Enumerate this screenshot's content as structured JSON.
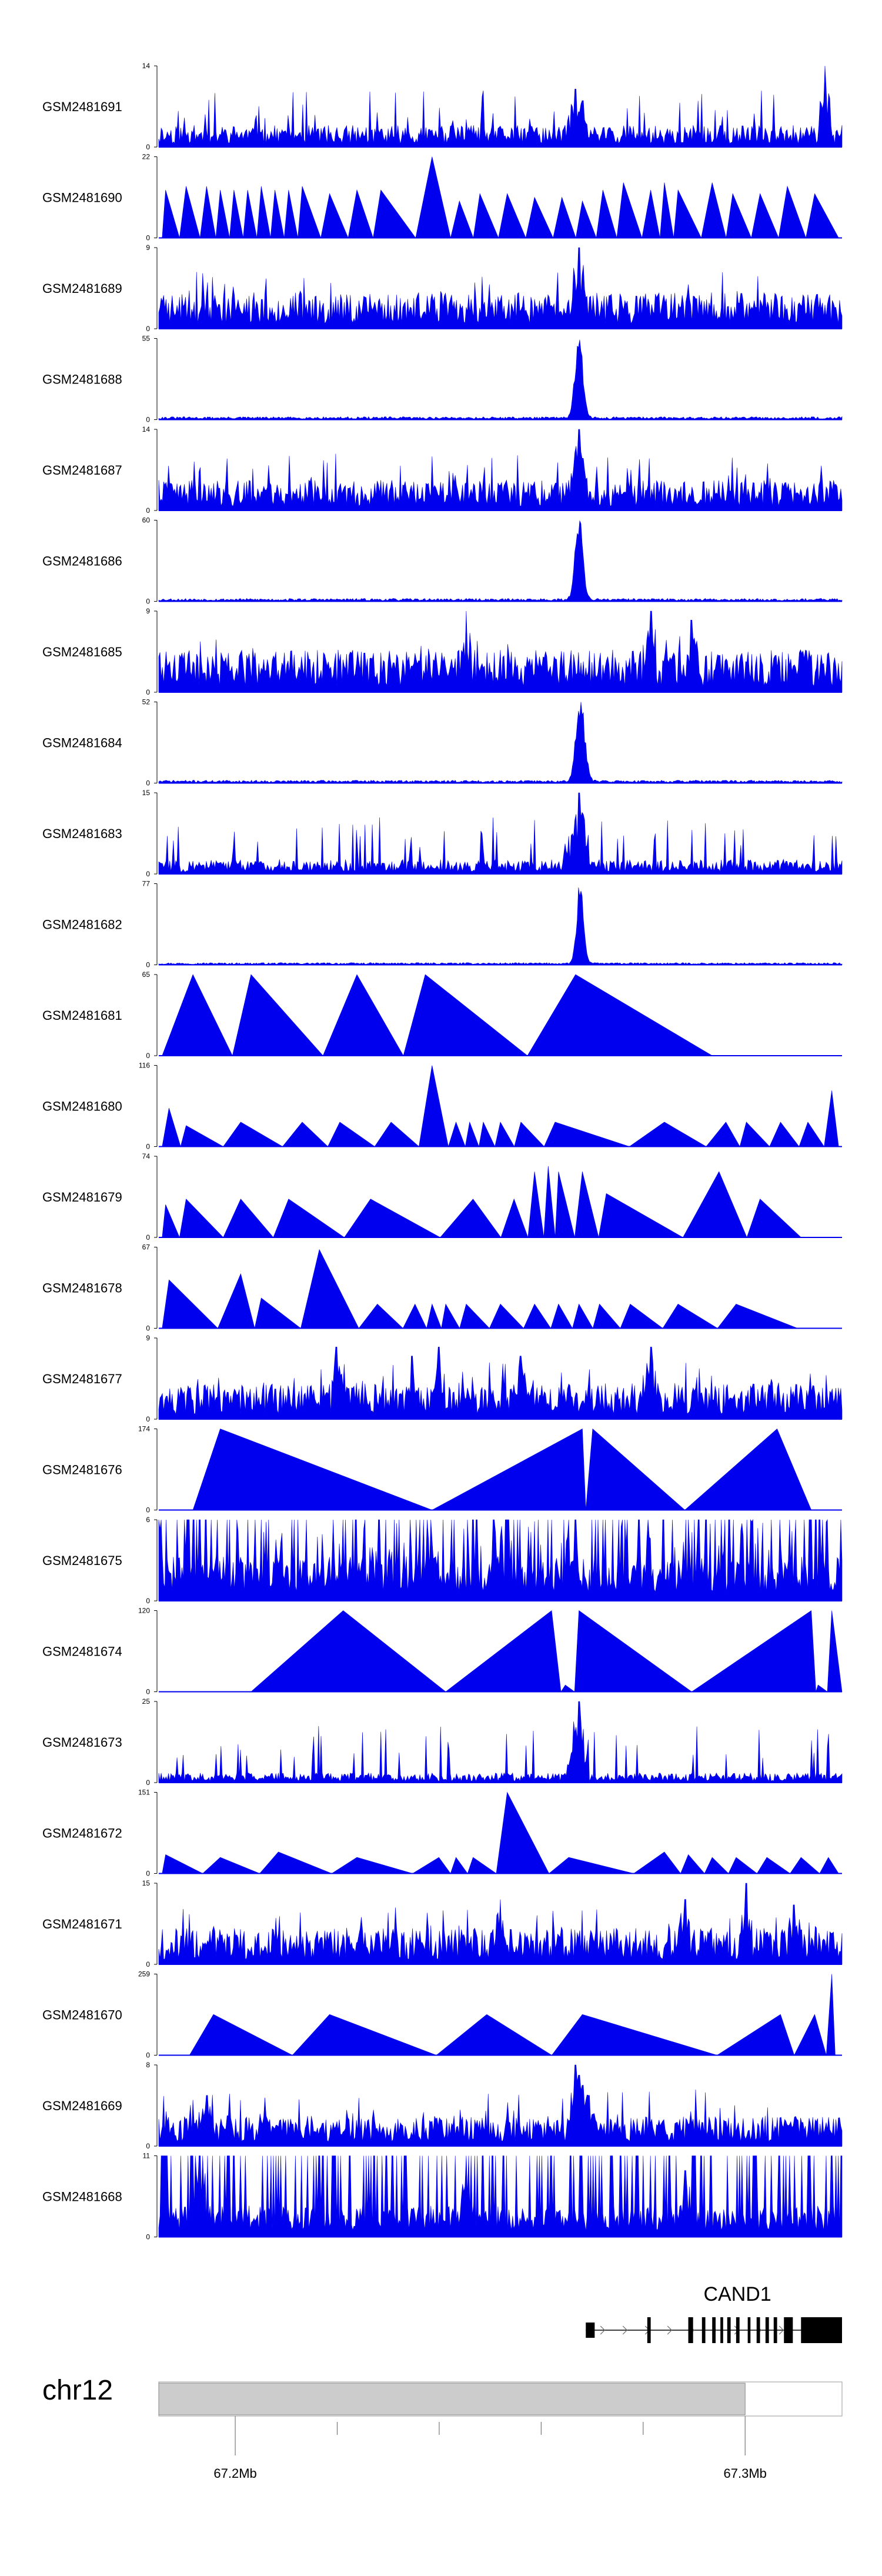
{
  "chart_data": {
    "type": "area",
    "title": "",
    "chromosome": "chr12",
    "x_range_bp": [
      67185000,
      67319000
    ],
    "ticks": [
      {
        "pos": 67200000,
        "label": "67.2Mb"
      },
      {
        "pos": 67300000,
        "label": "67.3Mb"
      }
    ],
    "minor_tick_positions": [
      67220000,
      67240000,
      67260000,
      67280000
    ],
    "region_start_bp": 67185000,
    "region_end_bp": 67300000,
    "colors": {
      "signal": "#0000ee",
      "gene": "#000000",
      "ideogram": "#cccccc"
    },
    "tracks": [
      {
        "name": "GSM2481691",
        "ymax": 14,
        "min_label": "0",
        "max_label": "14",
        "style": "noisy",
        "seed": 11,
        "base": 0.18,
        "spikes": [
          [
            0.61,
            10
          ],
          [
            0.62,
            8
          ],
          [
            0.605,
            7
          ],
          [
            0.975,
            14
          ]
        ]
      },
      {
        "name": "GSM2481690",
        "ymax": 22,
        "min_label": "0",
        "max_label": "22",
        "style": "sawtooth",
        "peaks": [
          [
            0.01,
            13
          ],
          [
            0.04,
            14
          ],
          [
            0.07,
            14
          ],
          [
            0.09,
            13
          ],
          [
            0.11,
            13
          ],
          [
            0.13,
            13
          ],
          [
            0.15,
            14
          ],
          [
            0.17,
            13
          ],
          [
            0.19,
            13
          ],
          [
            0.21,
            14
          ],
          [
            0.25,
            12
          ],
          [
            0.29,
            13
          ],
          [
            0.325,
            13
          ],
          [
            0.4,
            22
          ],
          [
            0.44,
            10
          ],
          [
            0.47,
            12
          ],
          [
            0.51,
            12
          ],
          [
            0.55,
            11
          ],
          [
            0.59,
            11
          ],
          [
            0.62,
            10
          ],
          [
            0.65,
            13
          ],
          [
            0.68,
            15
          ],
          [
            0.72,
            13
          ],
          [
            0.74,
            15
          ],
          [
            0.76,
            13
          ],
          [
            0.81,
            15
          ],
          [
            0.84,
            12
          ],
          [
            0.88,
            12
          ],
          [
            0.92,
            14
          ],
          [
            0.96,
            12
          ]
        ]
      },
      {
        "name": "GSM2481689",
        "ymax": 9,
        "min_label": "0",
        "max_label": "9",
        "style": "noisy",
        "seed": 23,
        "base": 0.3,
        "spikes": [
          [
            0.615,
            9
          ],
          [
            0.62,
            6
          ]
        ]
      },
      {
        "name": "GSM2481688",
        "ymax": 55,
        "min_label": "0",
        "max_label": "55",
        "style": "peak",
        "seed": 31,
        "base": 0.02,
        "center": 0.615,
        "width": 0.008,
        "height": 55
      },
      {
        "name": "GSM2481687",
        "ymax": 14,
        "min_label": "0",
        "max_label": "14",
        "style": "noisy",
        "seed": 41,
        "base": 0.25,
        "spikes": [
          [
            0.615,
            14
          ],
          [
            0.61,
            10
          ],
          [
            0.62,
            9
          ]
        ]
      },
      {
        "name": "GSM2481686",
        "ymax": 60,
        "min_label": "0",
        "max_label": "60",
        "style": "peak",
        "seed": 53,
        "base": 0.02,
        "center": 0.615,
        "width": 0.008,
        "height": 60
      },
      {
        "name": "GSM2481685",
        "ymax": 9,
        "min_label": "0",
        "max_label": "9",
        "style": "noisy",
        "seed": 61,
        "base": 0.35,
        "spikes": [
          [
            0.45,
            9
          ],
          [
            0.72,
            9
          ],
          [
            0.78,
            8
          ]
        ]
      },
      {
        "name": "GSM2481684",
        "ymax": 52,
        "min_label": "0",
        "max_label": "52",
        "style": "peak",
        "seed": 71,
        "base": 0.02,
        "center": 0.617,
        "width": 0.009,
        "height": 52
      },
      {
        "name": "GSM2481683",
        "ymax": 15,
        "min_label": "0",
        "max_label": "15",
        "style": "noisy",
        "seed": 83,
        "base": 0.12,
        "spikes": [
          [
            0.615,
            15
          ],
          [
            0.61,
            10
          ],
          [
            0.62,
            11
          ],
          [
            0.6,
            7
          ]
        ]
      },
      {
        "name": "GSM2481682",
        "ymax": 77,
        "min_label": "0",
        "max_label": "77",
        "style": "peak",
        "seed": 97,
        "base": 0.015,
        "center": 0.617,
        "width": 0.007,
        "height": 77
      },
      {
        "name": "GSM2481681",
        "ymax": 65,
        "min_label": "0",
        "max_label": "65",
        "style": "sawtooth",
        "peaks": [
          [
            0.05,
            65
          ],
          [
            0.135,
            65
          ],
          [
            0.29,
            65
          ],
          [
            0.39,
            65
          ],
          [
            0.61,
            65
          ]
        ],
        "end_fraction": 0.81
      },
      {
        "name": "GSM2481680",
        "ymax": 116,
        "min_label": "0",
        "max_label": "116",
        "style": "sawtooth",
        "peaks": [
          [
            0.015,
            55
          ],
          [
            0.04,
            30
          ],
          [
            0.12,
            35
          ],
          [
            0.21,
            35
          ],
          [
            0.265,
            35
          ],
          [
            0.34,
            35
          ],
          [
            0.4,
            116
          ],
          [
            0.435,
            35
          ],
          [
            0.455,
            35
          ],
          [
            0.475,
            35
          ],
          [
            0.5,
            35
          ],
          [
            0.53,
            35
          ],
          [
            0.58,
            35
          ],
          [
            0.74,
            35
          ],
          [
            0.83,
            35
          ],
          [
            0.86,
            35
          ],
          [
            0.91,
            35
          ],
          [
            0.95,
            35
          ],
          [
            0.985,
            80
          ]
        ]
      },
      {
        "name": "GSM2481679",
        "ymax": 74,
        "min_label": "0",
        "max_label": "74",
        "style": "sawtooth",
        "peaks": [
          [
            0.01,
            30
          ],
          [
            0.04,
            35
          ],
          [
            0.12,
            35
          ],
          [
            0.19,
            35
          ],
          [
            0.31,
            35
          ],
          [
            0.46,
            35
          ],
          [
            0.52,
            35
          ],
          [
            0.55,
            60
          ],
          [
            0.57,
            65
          ],
          [
            0.585,
            60
          ],
          [
            0.62,
            60
          ],
          [
            0.655,
            40
          ],
          [
            0.82,
            60
          ],
          [
            0.88,
            35
          ]
        ],
        "end_fraction": 0.94
      },
      {
        "name": "GSM2481678",
        "ymax": 67,
        "min_label": "0",
        "max_label": "67",
        "style": "sawtooth",
        "peaks": [
          [
            0.015,
            40
          ],
          [
            0.12,
            45
          ],
          [
            0.15,
            25
          ],
          [
            0.235,
            65
          ],
          [
            0.32,
            20
          ],
          [
            0.375,
            20
          ],
          [
            0.4,
            20
          ],
          [
            0.42,
            20
          ],
          [
            0.45,
            20
          ],
          [
            0.5,
            20
          ],
          [
            0.55,
            20
          ],
          [
            0.585,
            20
          ],
          [
            0.615,
            20
          ],
          [
            0.645,
            20
          ],
          [
            0.69,
            20
          ],
          [
            0.76,
            20
          ],
          [
            0.845,
            20
          ]
        ],
        "end_fraction": 0.935
      },
      {
        "name": "GSM2481677",
        "ymax": 9,
        "min_label": "0",
        "max_label": "9",
        "style": "noisy",
        "seed": 131,
        "base": 0.3,
        "spikes": [
          [
            0.26,
            8
          ],
          [
            0.37,
            7
          ],
          [
            0.41,
            8
          ],
          [
            0.53,
            7
          ],
          [
            0.72,
            8
          ]
        ]
      },
      {
        "name": "GSM2481676",
        "ymax": 174,
        "min_label": "0",
        "max_label": "174",
        "style": "sawtooth",
        "peaks": [
          [
            0.09,
            174
          ],
          [
            0.4,
            0
          ],
          [
            0.62,
            174
          ],
          [
            0.625,
            0
          ],
          [
            0.635,
            174
          ],
          [
            0.77,
            0
          ],
          [
            0.905,
            174
          ]
        ],
        "end_fraction": 0.955,
        "start_fraction": 0.05
      },
      {
        "name": "GSM2481675",
        "ymax": 6,
        "min_label": "0",
        "max_label": "6",
        "style": "dense",
        "seed": 151,
        "base": 0.5
      },
      {
        "name": "GSM2481674",
        "ymax": 120,
        "min_label": "0",
        "max_label": "120",
        "style": "sawtooth",
        "peaks": [
          [
            0.27,
            120
          ],
          [
            0.42,
            0
          ],
          [
            0.575,
            120
          ],
          [
            0.595,
            10
          ],
          [
            0.615,
            120
          ],
          [
            0.78,
            0
          ],
          [
            0.955,
            120
          ],
          [
            0.965,
            10
          ],
          [
            0.985,
            120
          ]
        ],
        "end_fraction": 1.0,
        "start_fraction": 0.135
      },
      {
        "name": "GSM2481673",
        "ymax": 25,
        "min_label": "0",
        "max_label": "25",
        "style": "noisy",
        "seed": 173,
        "base": 0.08,
        "spikes": [
          [
            0.615,
            25
          ],
          [
            0.61,
            14
          ],
          [
            0.62,
            12
          ],
          [
            0.605,
            9
          ]
        ]
      },
      {
        "name": "GSM2481672",
        "ymax": 151,
        "min_label": "0",
        "max_label": "151",
        "style": "sawtooth",
        "peaks": [
          [
            0.01,
            35
          ],
          [
            0.09,
            30
          ],
          [
            0.175,
            40
          ],
          [
            0.29,
            30
          ],
          [
            0.41,
            30
          ],
          [
            0.435,
            30
          ],
          [
            0.46,
            30
          ],
          [
            0.51,
            151
          ],
          [
            0.6,
            30
          ],
          [
            0.74,
            40
          ],
          [
            0.775,
            35
          ],
          [
            0.81,
            30
          ],
          [
            0.845,
            30
          ],
          [
            0.89,
            30
          ],
          [
            0.94,
            30
          ],
          [
            0.98,
            30
          ]
        ],
        "end_fraction": 0.995
      },
      {
        "name": "GSM2481671",
        "ymax": 15,
        "min_label": "0",
        "max_label": "15",
        "style": "noisy",
        "seed": 199,
        "base": 0.3,
        "spikes": [
          [
            0.5,
            12
          ],
          [
            0.77,
            12
          ],
          [
            0.86,
            15
          ],
          [
            0.93,
            11
          ]
        ]
      },
      {
        "name": "GSM2481670",
        "ymax": 259,
        "min_label": "0",
        "max_label": "259",
        "style": "sawtooth",
        "peaks": [
          [
            0.08,
            130
          ],
          [
            0.25,
            130
          ],
          [
            0.48,
            130
          ],
          [
            0.62,
            130
          ],
          [
            0.91,
            130
          ],
          [
            0.93,
            0
          ],
          [
            0.96,
            130
          ],
          [
            0.985,
            259
          ]
        ],
        "end_fraction": 0.99,
        "start_fraction": 0.045
      },
      {
        "name": "GSM2481669",
        "ymax": 8,
        "min_label": "0",
        "max_label": "8",
        "style": "noisy",
        "seed": 227,
        "base": 0.25,
        "spikes": [
          [
            0.61,
            8
          ],
          [
            0.615,
            7
          ],
          [
            0.62,
            6
          ],
          [
            0.63,
            5
          ],
          [
            0.07,
            5
          ]
        ]
      },
      {
        "name": "GSM2481668",
        "ymax": 11,
        "min_label": "0",
        "max_label": "11",
        "style": "dense",
        "seed": 241,
        "base": 0.35,
        "spikes": [
          [
            0.06,
            11
          ],
          [
            0.45,
            9
          ],
          [
            0.77,
            9
          ]
        ]
      }
    ],
    "gene": {
      "name": "CAND1",
      "start_fraction": 0.625,
      "end_fraction": 1.0,
      "strand": "+",
      "exons": [
        [
          0.625,
          0.638
        ],
        [
          0.715,
          0.72
        ],
        [
          0.775,
          0.782
        ],
        [
          0.795,
          0.8
        ],
        [
          0.81,
          0.815
        ],
        [
          0.822,
          0.826
        ],
        [
          0.832,
          0.837
        ],
        [
          0.845,
          0.85
        ],
        [
          0.862,
          0.866
        ],
        [
          0.875,
          0.88
        ],
        [
          0.888,
          0.893
        ],
        [
          0.9,
          0.905
        ],
        [
          0.915,
          0.928
        ],
        [
          0.94,
          1.0
        ]
      ]
    }
  }
}
